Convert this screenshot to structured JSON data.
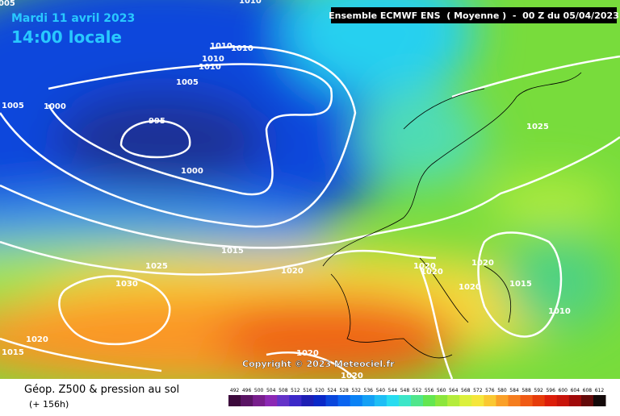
{
  "header": {
    "date": "Mardi 11 avril 2023",
    "time": "14:00 locale",
    "model": "Ensemble ECMWF ENS  ( Moyenne )  -  00 Z du 05/04/2023"
  },
  "isobar_labels": [
    "005",
    "1010",
    "1010",
    "1010",
    "1010",
    "1010",
    "1005",
    "1005",
    "1000",
    "995",
    "1000",
    "1025",
    "1015",
    "1025",
    "1020",
    "1030",
    "1020",
    "1020",
    "1020",
    "1020",
    "1015",
    "1010",
    "1020",
    "1015",
    "1020",
    "1020"
  ],
  "copyright": "Copyright © 2023 Meteociel.fr",
  "footer": {
    "title": "Géop. Z500 & pression au sol",
    "lead": "(+ 156h)"
  },
  "scale": {
    "labels": [
      "492",
      "496",
      "500",
      "504",
      "508",
      "512",
      "516",
      "520",
      "524",
      "528",
      "532",
      "536",
      "540",
      "544",
      "548",
      "552",
      "556",
      "560",
      "564",
      "568",
      "572",
      "576",
      "580",
      "584",
      "588",
      "592",
      "596",
      "600",
      "604",
      "608",
      "612"
    ],
    "colors": [
      "#3c0a3c",
      "#5a1464",
      "#781e8c",
      "#8c28b4",
      "#6432c8",
      "#3c28c8",
      "#1e1eb4",
      "#0a28c8",
      "#0a46dc",
      "#0a64f0",
      "#0a82f5",
      "#14a0f5",
      "#1ebef5",
      "#28dcf0",
      "#3ce6c8",
      "#50e68c",
      "#64e650",
      "#8ce63c",
      "#b4ec3c",
      "#dcf03c",
      "#f5e63c",
      "#fac832",
      "#faa028",
      "#f57d1e",
      "#f05a14",
      "#e63c0a",
      "#dc1e0a",
      "#c8140a",
      "#a00a0a",
      "#640a0a",
      "#140a0a"
    ]
  }
}
